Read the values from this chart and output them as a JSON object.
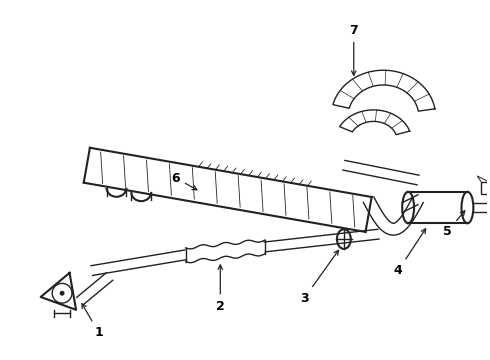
{
  "background_color": "#ffffff",
  "line_color": "#222222",
  "label_color": "#000000",
  "figure_width": 4.9,
  "figure_height": 3.6,
  "dpi": 100,
  "label_fontsize": 9
}
